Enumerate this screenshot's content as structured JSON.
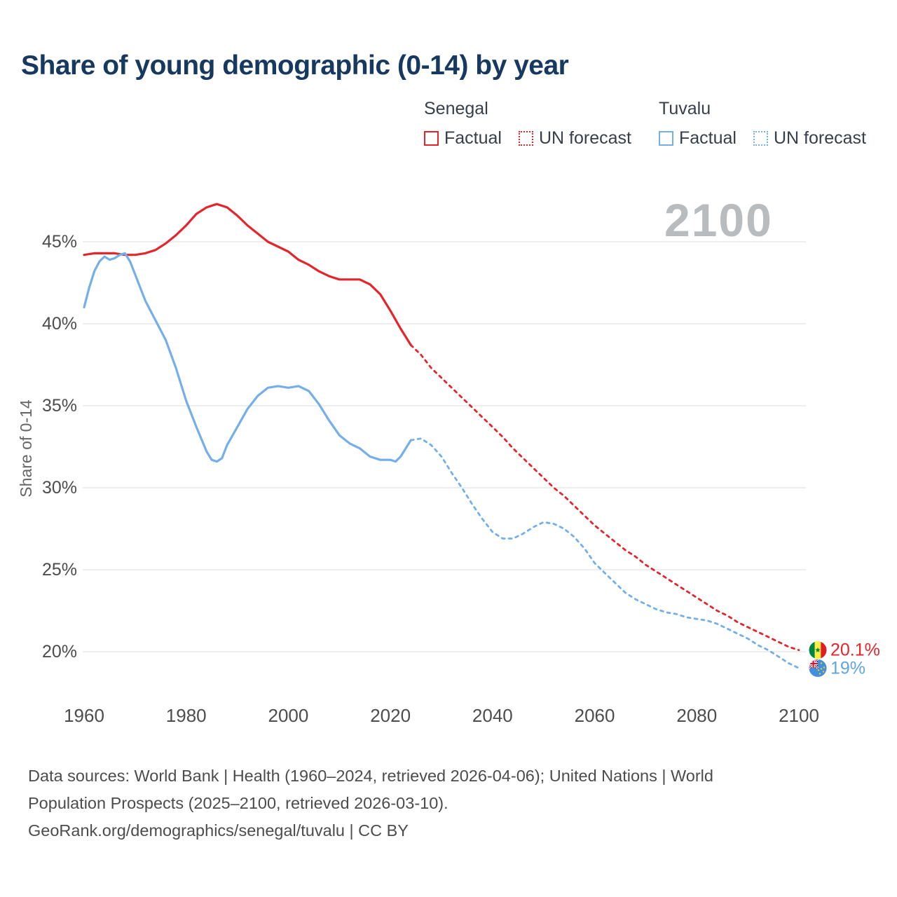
{
  "title": "Share of young demographic (0-14) by year",
  "watermark": "2100",
  "colors": {
    "senegal": "#e5252c",
    "tuvalu": "#74afe9",
    "title": "#17395f",
    "grid": "#e8e8ec",
    "tick": "#4d4d4d",
    "watermark": "#b9bcbe",
    "footer": "#4c4c4c"
  },
  "legend": {
    "groups": [
      {
        "name": "Senegal",
        "color": "#e5252c",
        "items": [
          {
            "label": "Factual",
            "style": "solid"
          },
          {
            "label": "UN forecast",
            "style": "dashed"
          }
        ]
      },
      {
        "name": "Tuvalu",
        "color": "#74afe9",
        "items": [
          {
            "label": "Factual",
            "style": "solid"
          },
          {
            "label": "UN forecast",
            "style": "dashed"
          }
        ]
      }
    ]
  },
  "footer": {
    "lines": [
      "Data sources: World Bank | Health (1960–2024, retrieved 2026-04-06); United Nations | World",
      "Population Prospects (2025–2100, retrieved 2026-03-10).",
      "GeoRank.org/demographics/senegal/tuvalu | CC BY"
    ]
  },
  "chart_data": {
    "type": "line",
    "title": "Share of young demographic (0-14) by year",
    "xlabel": "",
    "ylabel": "Share of 0-14",
    "x_ticks": [
      1960,
      1980,
      2000,
      2020,
      2040,
      2060,
      2080,
      2100
    ],
    "y_ticks": [
      {
        "value": 20,
        "label": "20%"
      },
      {
        "value": 25,
        "label": "25%"
      },
      {
        "value": 30,
        "label": "30%"
      },
      {
        "value": 35,
        "label": "35%"
      },
      {
        "value": 40,
        "label": "40%"
      },
      {
        "value": 45,
        "label": "45%"
      }
    ],
    "xlim": [
      1955,
      2112
    ],
    "ylim": [
      17.6,
      48.4
    ],
    "grid": "horizontal-only",
    "legend_position": "top-right",
    "series": [
      {
        "id": "senegal-factual",
        "country": "Senegal",
        "kind": "Factual",
        "color": "#e5252c",
        "style": "solid",
        "points": [
          [
            1960,
            44.2
          ],
          [
            1962,
            44.3
          ],
          [
            1964,
            44.3
          ],
          [
            1966,
            44.3
          ],
          [
            1968,
            44.2
          ],
          [
            1970,
            44.2
          ],
          [
            1972,
            44.3
          ],
          [
            1974,
            44.5
          ],
          [
            1976,
            44.9
          ],
          [
            1978,
            45.4
          ],
          [
            1980,
            46.0
          ],
          [
            1982,
            46.7
          ],
          [
            1984,
            47.1
          ],
          [
            1986,
            47.3
          ],
          [
            1988,
            47.1
          ],
          [
            1990,
            46.6
          ],
          [
            1992,
            46.0
          ],
          [
            1994,
            45.5
          ],
          [
            1996,
            45.0
          ],
          [
            1998,
            44.7
          ],
          [
            2000,
            44.4
          ],
          [
            2002,
            43.9
          ],
          [
            2004,
            43.6
          ],
          [
            2006,
            43.2
          ],
          [
            2008,
            42.9
          ],
          [
            2010,
            42.7
          ],
          [
            2012,
            42.7
          ],
          [
            2014,
            42.7
          ],
          [
            2016,
            42.4
          ],
          [
            2018,
            41.8
          ],
          [
            2020,
            40.8
          ],
          [
            2022,
            39.7
          ],
          [
            2024,
            38.7
          ]
        ]
      },
      {
        "id": "senegal-forecast",
        "country": "Senegal",
        "kind": "UN forecast",
        "color": "#e5252c",
        "style": "dashed",
        "points": [
          [
            2024,
            38.7
          ],
          [
            2026,
            38.1
          ],
          [
            2028,
            37.3
          ],
          [
            2030,
            36.7
          ],
          [
            2032,
            36.1
          ],
          [
            2034,
            35.5
          ],
          [
            2036,
            34.9
          ],
          [
            2038,
            34.3
          ],
          [
            2040,
            33.7
          ],
          [
            2042,
            33.1
          ],
          [
            2044,
            32.4
          ],
          [
            2046,
            31.8
          ],
          [
            2048,
            31.2
          ],
          [
            2050,
            30.6
          ],
          [
            2052,
            30.0
          ],
          [
            2054,
            29.5
          ],
          [
            2056,
            28.9
          ],
          [
            2058,
            28.3
          ],
          [
            2060,
            27.7
          ],
          [
            2062,
            27.2
          ],
          [
            2064,
            26.7
          ],
          [
            2066,
            26.2
          ],
          [
            2068,
            25.8
          ],
          [
            2070,
            25.3
          ],
          [
            2072,
            24.9
          ],
          [
            2074,
            24.5
          ],
          [
            2076,
            24.1
          ],
          [
            2078,
            23.7
          ],
          [
            2080,
            23.3
          ],
          [
            2082,
            22.9
          ],
          [
            2084,
            22.5
          ],
          [
            2086,
            22.2
          ],
          [
            2088,
            21.8
          ],
          [
            2090,
            21.5
          ],
          [
            2092,
            21.2
          ],
          [
            2094,
            20.9
          ],
          [
            2096,
            20.6
          ],
          [
            2098,
            20.3
          ],
          [
            2100,
            20.1
          ]
        ]
      },
      {
        "id": "tuvalu-factual",
        "country": "Tuvalu",
        "kind": "Factual",
        "color": "#74afe9",
        "style": "solid",
        "points": [
          [
            1960,
            41.0
          ],
          [
            1961,
            42.2
          ],
          [
            1962,
            43.2
          ],
          [
            1963,
            43.8
          ],
          [
            1964,
            44.1
          ],
          [
            1965,
            43.9
          ],
          [
            1966,
            44.0
          ],
          [
            1967,
            44.2
          ],
          [
            1968,
            44.3
          ],
          [
            1969,
            43.8
          ],
          [
            1970,
            43.0
          ],
          [
            1972,
            41.4
          ],
          [
            1974,
            40.2
          ],
          [
            1976,
            39.0
          ],
          [
            1978,
            37.3
          ],
          [
            1980,
            35.3
          ],
          [
            1982,
            33.7
          ],
          [
            1984,
            32.2
          ],
          [
            1985,
            31.7
          ],
          [
            1986,
            31.6
          ],
          [
            1987,
            31.8
          ],
          [
            1988,
            32.6
          ],
          [
            1990,
            33.7
          ],
          [
            1992,
            34.8
          ],
          [
            1994,
            35.6
          ],
          [
            1996,
            36.1
          ],
          [
            1998,
            36.2
          ],
          [
            2000,
            36.1
          ],
          [
            2002,
            36.2
          ],
          [
            2004,
            35.9
          ],
          [
            2006,
            35.1
          ],
          [
            2008,
            34.1
          ],
          [
            2010,
            33.2
          ],
          [
            2012,
            32.7
          ],
          [
            2014,
            32.4
          ],
          [
            2016,
            31.9
          ],
          [
            2018,
            31.7
          ],
          [
            2020,
            31.7
          ],
          [
            2021,
            31.6
          ],
          [
            2022,
            31.9
          ],
          [
            2024,
            32.9
          ]
        ]
      },
      {
        "id": "tuvalu-forecast",
        "country": "Tuvalu",
        "kind": "UN forecast",
        "color": "#74afe9",
        "style": "dashed",
        "points": [
          [
            2024,
            32.9
          ],
          [
            2026,
            33.0
          ],
          [
            2028,
            32.6
          ],
          [
            2030,
            31.9
          ],
          [
            2032,
            30.9
          ],
          [
            2034,
            30.0
          ],
          [
            2036,
            29.0
          ],
          [
            2038,
            28.1
          ],
          [
            2040,
            27.3
          ],
          [
            2042,
            26.9
          ],
          [
            2044,
            26.9
          ],
          [
            2046,
            27.2
          ],
          [
            2048,
            27.6
          ],
          [
            2050,
            27.9
          ],
          [
            2052,
            27.8
          ],
          [
            2054,
            27.5
          ],
          [
            2056,
            27.0
          ],
          [
            2058,
            26.3
          ],
          [
            2060,
            25.4
          ],
          [
            2062,
            24.8
          ],
          [
            2064,
            24.2
          ],
          [
            2066,
            23.6
          ],
          [
            2068,
            23.2
          ],
          [
            2070,
            22.9
          ],
          [
            2072,
            22.6
          ],
          [
            2074,
            22.4
          ],
          [
            2076,
            22.3
          ],
          [
            2078,
            22.1
          ],
          [
            2080,
            22.0
          ],
          [
            2082,
            21.9
          ],
          [
            2084,
            21.7
          ],
          [
            2086,
            21.4
          ],
          [
            2088,
            21.1
          ],
          [
            2090,
            20.8
          ],
          [
            2092,
            20.4
          ],
          [
            2094,
            20.1
          ],
          [
            2096,
            19.7
          ],
          [
            2098,
            19.3
          ],
          [
            2100,
            19.0
          ]
        ]
      }
    ],
    "end_labels": [
      {
        "text": "20.1%",
        "value": 20.1,
        "color": "#e5252c",
        "flag": "senegal-flag-icon"
      },
      {
        "text": "19%",
        "value": 19.0,
        "color": "#5ea4e6",
        "flag": "tuvalu-flag-icon"
      }
    ]
  }
}
